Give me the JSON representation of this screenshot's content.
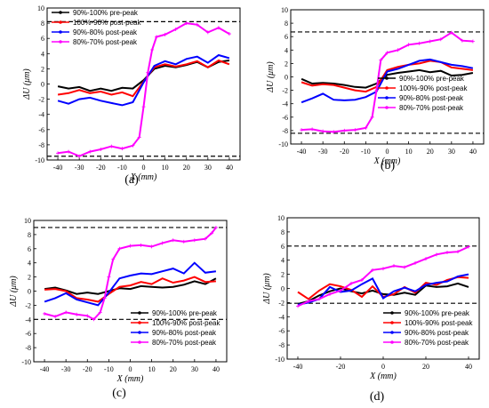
{
  "chart_data": [
    {
      "type": "line",
      "panel_label": "(a)",
      "xlabel": "X (mm)",
      "ylabel": "ΔU (μm)",
      "xlim": [
        -45,
        45
      ],
      "ylim": [
        -10,
        10
      ],
      "xticks": [
        -40,
        -30,
        -20,
        -10,
        0,
        10,
        20,
        30,
        40
      ],
      "yticks": [
        -10,
        -8,
        -6,
        -4,
        -2,
        0,
        2,
        4,
        6,
        8,
        10
      ],
      "legend_position": "top-left",
      "threshold_lines": [
        8.2,
        -9.5
      ],
      "series": [
        {
          "name": "90%-100% pre-peak",
          "color": "#000000",
          "marker": "",
          "x": [
            -40,
            -35,
            -30,
            -25,
            -20,
            -15,
            -10,
            -5,
            0,
            5,
            10,
            15,
            20,
            25,
            30,
            35,
            40
          ],
          "y": [
            -0.3,
            -0.6,
            -0.4,
            -0.9,
            -0.6,
            -0.9,
            -0.5,
            -0.6,
            0.5,
            2.0,
            2.4,
            2.2,
            2.5,
            2.9,
            2.2,
            2.9,
            3.1
          ]
        },
        {
          "name": "100%-90% post-peak",
          "color": "#ff0000",
          "marker": "",
          "x": [
            -40,
            -35,
            -30,
            -25,
            -20,
            -15,
            -10,
            -5,
            0,
            5,
            10,
            15,
            20,
            25,
            30,
            35,
            40
          ],
          "y": [
            -1.4,
            -1.2,
            -0.8,
            -1.2,
            -1.0,
            -1.4,
            -1.1,
            -1.6,
            0.3,
            2.2,
            2.6,
            2.3,
            2.6,
            3.0,
            2.2,
            3.1,
            2.6
          ]
        },
        {
          "name": "90%-80% post-peak",
          "color": "#0000ff",
          "marker": "",
          "x": [
            -40,
            -35,
            -30,
            -25,
            -20,
            -15,
            -10,
            -5,
            0,
            5,
            10,
            15,
            20,
            25,
            30,
            35,
            40
          ],
          "y": [
            -2.2,
            -2.6,
            -2.0,
            -1.8,
            -2.2,
            -2.5,
            -2.8,
            -2.4,
            0.2,
            2.4,
            3.0,
            2.6,
            3.3,
            3.6,
            2.8,
            3.8,
            3.4
          ]
        },
        {
          "name": "80%-70% post-peak",
          "color": "#ff00ff",
          "marker": "+",
          "x": [
            -40,
            -35,
            -30,
            -25,
            -20,
            -15,
            -10,
            -5,
            -2,
            0,
            2,
            4,
            6,
            10,
            15,
            20,
            25,
            30,
            35,
            40
          ],
          "y": [
            -9.1,
            -8.9,
            -9.5,
            -8.9,
            -8.6,
            -8.2,
            -8.5,
            -8.1,
            -7.0,
            -3.0,
            1.5,
            4.5,
            6.2,
            6.5,
            7.2,
            8.0,
            7.8,
            6.8,
            7.4,
            6.6
          ]
        }
      ]
    },
    {
      "type": "line",
      "panel_label": "(b)",
      "xlabel": "X (mm)",
      "ylabel": "ΔU (μm)",
      "xlim": [
        -45,
        45
      ],
      "ylim": [
        -10,
        10
      ],
      "xticks": [
        -40,
        -30,
        -20,
        -10,
        0,
        10,
        20,
        30,
        40
      ],
      "yticks": [
        -10,
        -8,
        -6,
        -4,
        -2,
        0,
        2,
        4,
        6,
        8,
        10
      ],
      "legend_position": "bottom-right",
      "threshold_lines": [
        6.7,
        -8.4
      ],
      "series": [
        {
          "name": "90%-100% pre-peak",
          "color": "#000000",
          "marker": "",
          "x": [
            -40,
            -35,
            -30,
            -25,
            -20,
            -15,
            -10,
            -5,
            0,
            5,
            10,
            15,
            20,
            25,
            30,
            35,
            40
          ],
          "y": [
            -0.3,
            -1.0,
            -0.9,
            -1.0,
            -1.2,
            -1.5,
            -1.6,
            -1.0,
            0.3,
            0.6,
            0.8,
            1.0,
            0.7,
            0.9,
            0.2,
            0.3,
            0.6
          ]
        },
        {
          "name": "100%-90% post-peak",
          "color": "#ff0000",
          "marker": "",
          "x": [
            -40,
            -35,
            -30,
            -25,
            -20,
            -15,
            -10,
            -5,
            0,
            5,
            10,
            15,
            20,
            25,
            30,
            35,
            40
          ],
          "y": [
            -0.8,
            -1.3,
            -1.1,
            -1.2,
            -1.6,
            -2.0,
            -2.2,
            -1.5,
            1.0,
            1.5,
            1.8,
            2.0,
            2.4,
            2.2,
            1.4,
            1.2,
            1.0
          ]
        },
        {
          "name": "90%-80% post-peak",
          "color": "#0000ff",
          "marker": "",
          "x": [
            -40,
            -35,
            -30,
            -25,
            -20,
            -15,
            -10,
            -5,
            0,
            5,
            10,
            15,
            20,
            25,
            30,
            35,
            40
          ],
          "y": [
            -3.8,
            -3.2,
            -2.5,
            -3.4,
            -3.5,
            -3.4,
            -3.0,
            -2.2,
            0.8,
            1.2,
            1.8,
            2.4,
            2.6,
            2.2,
            1.8,
            1.6,
            1.3
          ]
        },
        {
          "name": "80%-70% post-peak",
          "color": "#ff00ff",
          "marker": "+",
          "x": [
            -40,
            -35,
            -30,
            -25,
            -20,
            -15,
            -10,
            -7,
            -5,
            -3,
            0,
            5,
            10,
            15,
            20,
            25,
            30,
            35,
            40
          ],
          "y": [
            -7.9,
            -7.8,
            -8.1,
            -8.2,
            -8.0,
            -7.9,
            -7.6,
            -6.0,
            -2.0,
            2.5,
            3.6,
            4.0,
            4.8,
            5.0,
            5.3,
            5.6,
            6.6,
            5.4,
            5.3
          ]
        }
      ]
    },
    {
      "type": "line",
      "panel_label": "(c)",
      "xlabel": "X (mm)",
      "ylabel": "ΔU (μm)",
      "xlim": [
        -45,
        45
      ],
      "ylim": [
        -10,
        10
      ],
      "xticks": [
        -40,
        -30,
        -20,
        -10,
        0,
        10,
        20,
        30,
        40
      ],
      "yticks": [
        -10,
        -8,
        -6,
        -4,
        -2,
        0,
        2,
        4,
        6,
        8,
        10
      ],
      "legend_position": "bottom-right",
      "threshold_lines": [
        9.0,
        -4.0
      ],
      "series": [
        {
          "name": "90%-100% pre-peak",
          "color": "#000000",
          "marker": "",
          "x": [
            -40,
            -35,
            -30,
            -25,
            -20,
            -15,
            -10,
            -5,
            0,
            5,
            10,
            15,
            20,
            25,
            30,
            35,
            40
          ],
          "y": [
            0.3,
            0.5,
            0.1,
            -0.4,
            -0.2,
            -0.4,
            0.0,
            0.4,
            0.3,
            0.7,
            0.6,
            0.5,
            0.6,
            0.9,
            1.4,
            1.0,
            1.8
          ]
        },
        {
          "name": "100%-90% post-peak",
          "color": "#ff0000",
          "marker": "",
          "x": [
            -40,
            -35,
            -30,
            -25,
            -20,
            -15,
            -10,
            -5,
            0,
            5,
            10,
            15,
            20,
            25,
            30,
            35,
            40
          ],
          "y": [
            0.2,
            0.3,
            0.0,
            -1.0,
            -1.2,
            -1.5,
            -0.4,
            0.6,
            0.8,
            1.3,
            1.0,
            1.8,
            1.2,
            1.5,
            2.0,
            1.3,
            1.4
          ]
        },
        {
          "name": "90%-80% post-peak",
          "color": "#0000ff",
          "marker": "",
          "x": [
            -40,
            -35,
            -30,
            -25,
            -20,
            -15,
            -10,
            -5,
            0,
            5,
            10,
            15,
            20,
            25,
            30,
            35,
            40
          ],
          "y": [
            -1.5,
            -1.0,
            -0.3,
            -1.2,
            -1.6,
            -2.0,
            -0.2,
            1.8,
            2.2,
            2.5,
            2.4,
            2.8,
            3.2,
            2.5,
            4.0,
            2.6,
            2.8
          ]
        },
        {
          "name": "80%-70% post-peak",
          "color": "#ff00ff",
          "marker": "+",
          "x": [
            -40,
            -35,
            -30,
            -25,
            -20,
            -17,
            -14,
            -12,
            -10,
            -8,
            -5,
            0,
            5,
            10,
            15,
            20,
            25,
            30,
            35,
            38,
            40
          ],
          "y": [
            -3.2,
            -3.6,
            -3.0,
            -3.3,
            -3.5,
            -4.0,
            -3.0,
            -1.0,
            2.0,
            4.5,
            6.0,
            6.4,
            6.5,
            6.3,
            6.8,
            7.2,
            7.0,
            7.2,
            7.4,
            8.2,
            9.0
          ]
        }
      ]
    },
    {
      "type": "line",
      "panel_label": "(d)",
      "xlabel": "X (mm)",
      "ylabel": "ΔU (μm)",
      "xlim": [
        -45,
        45
      ],
      "ylim": [
        -10,
        10
      ],
      "xticks": [
        -40,
        -20,
        0,
        20,
        40
      ],
      "yticks": [
        -10,
        -8,
        -6,
        -4,
        -2,
        0,
        2,
        4,
        6,
        8,
        10
      ],
      "legend_position": "bottom-right",
      "threshold_lines": [
        6.0,
        -2.1
      ],
      "series": [
        {
          "name": "90%-100% pre-peak",
          "color": "#000000",
          "marker": "",
          "x": [
            -40,
            -35,
            -30,
            -25,
            -20,
            -15,
            -10,
            -5,
            0,
            5,
            10,
            15,
            20,
            25,
            30,
            35,
            40
          ],
          "y": [
            -2.2,
            -1.8,
            -1.0,
            -0.4,
            0.0,
            -0.4,
            -0.7,
            -0.3,
            -0.8,
            -0.9,
            -0.6,
            -0.9,
            0.4,
            0.2,
            0.3,
            0.7,
            0.2
          ]
        },
        {
          "name": "100%-90% post-peak",
          "color": "#ff0000",
          "marker": "",
          "x": [
            -40,
            -35,
            -30,
            -25,
            -20,
            -15,
            -10,
            -5,
            0,
            5,
            10,
            15,
            20,
            25,
            30,
            35,
            40
          ],
          "y": [
            -0.5,
            -1.5,
            -0.3,
            0.6,
            0.3,
            -0.2,
            -1.2,
            0.3,
            -1.2,
            -0.8,
            0.2,
            -0.6,
            0.8,
            0.5,
            1.2,
            1.6,
            1.5
          ]
        },
        {
          "name": "90%-80% post-peak",
          "color": "#0000ff",
          "marker": "",
          "x": [
            -40,
            -35,
            -30,
            -25,
            -20,
            -15,
            -10,
            -5,
            0,
            5,
            10,
            15,
            20,
            25,
            30,
            35,
            40
          ],
          "y": [
            -2.3,
            -2.0,
            -1.5,
            0.2,
            -0.5,
            -0.3,
            0.6,
            1.4,
            -1.4,
            -0.4,
            0.1,
            -0.4,
            0.5,
            0.8,
            1.0,
            1.7,
            2.0
          ]
        },
        {
          "name": "80%-70% post-peak",
          "color": "#ff00ff",
          "marker": "+",
          "x": [
            -40,
            -35,
            -30,
            -25,
            -20,
            -15,
            -10,
            -5,
            0,
            5,
            10,
            15,
            20,
            25,
            30,
            35,
            40
          ],
          "y": [
            -2.5,
            -1.8,
            -1.5,
            -0.8,
            -0.3,
            0.7,
            1.2,
            2.6,
            2.8,
            3.2,
            3.0,
            3.6,
            4.2,
            4.8,
            5.1,
            5.2,
            5.9
          ]
        }
      ]
    }
  ]
}
